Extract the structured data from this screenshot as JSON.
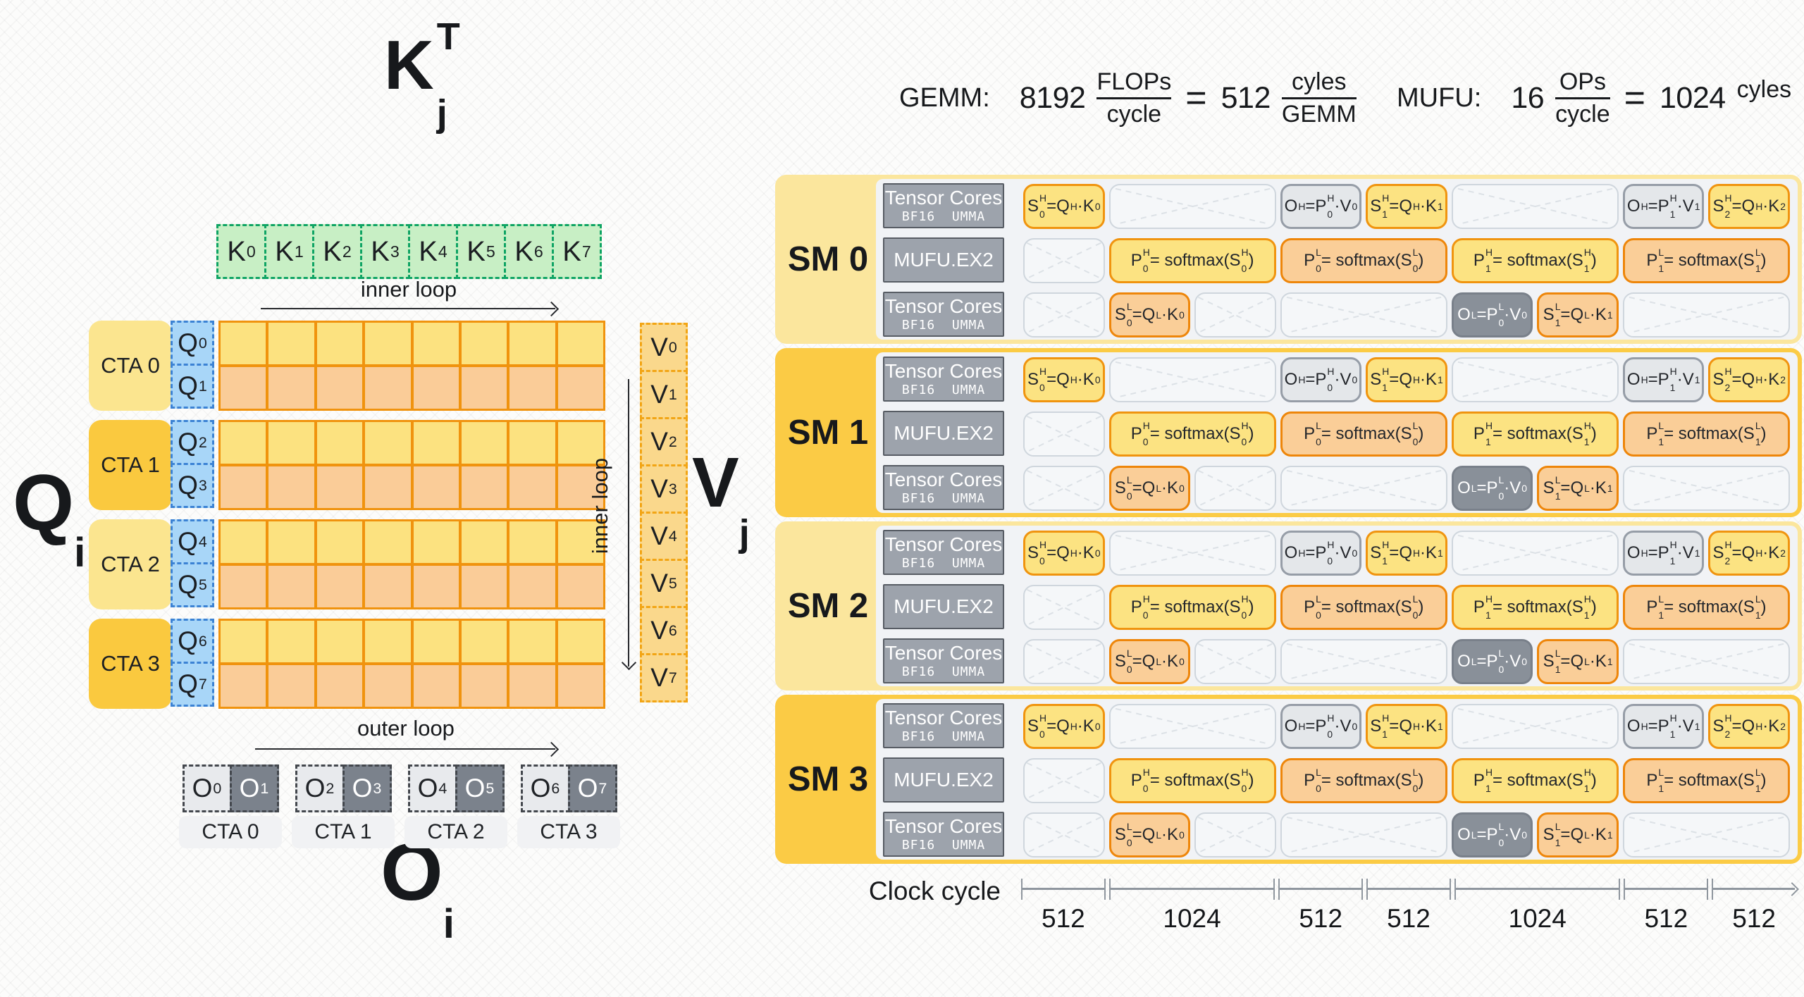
{
  "formulas": {
    "gemm": {
      "label": "GEMM:",
      "coef": "8192",
      "num": "FLOPs",
      "den": "cycle",
      "eq": "=",
      "result": "512",
      "num2": "cyles",
      "den2": "GEMM"
    },
    "mufu": {
      "label": "MUFU:",
      "coef": "16",
      "num": "OPs",
      "den": "cycle",
      "eq": "=",
      "result": "1024",
      "unit": "cyles"
    }
  },
  "left": {
    "k_title": {
      "base": "K",
      "sup": "T",
      "sub": "j"
    },
    "q_title": {
      "base": "Q",
      "sub": "i"
    },
    "v_title": {
      "base": "V",
      "sub": "j"
    },
    "o_title": {
      "base": "O",
      "sub": "i"
    },
    "inner_loop_h": "inner loop",
    "inner_loop_v": "inner loop",
    "outer_loop": "outer loop",
    "k_cells": [
      {
        "base": "K",
        "sub": "0"
      },
      {
        "base": "K",
        "sub": "1"
      },
      {
        "base": "K",
        "sub": "2"
      },
      {
        "base": "K",
        "sub": "3"
      },
      {
        "base": "K",
        "sub": "4"
      },
      {
        "base": "K",
        "sub": "5"
      },
      {
        "base": "K",
        "sub": "6"
      },
      {
        "base": "K",
        "sub": "7"
      }
    ],
    "v_cells": [
      {
        "base": "V",
        "sub": "0"
      },
      {
        "base": "V",
        "sub": "1"
      },
      {
        "base": "V",
        "sub": "2"
      },
      {
        "base": "V",
        "sub": "3"
      },
      {
        "base": "V",
        "sub": "4"
      },
      {
        "base": "V",
        "sub": "5"
      },
      {
        "base": "V",
        "sub": "6"
      },
      {
        "base": "V",
        "sub": "7"
      }
    ],
    "cta_bands": [
      {
        "label": "CTA 0",
        "tone": "light",
        "q_cells": [
          {
            "base": "Q",
            "sub": "0"
          },
          {
            "base": "Q",
            "sub": "1"
          }
        ]
      },
      {
        "label": "CTA 1",
        "tone": "gold",
        "q_cells": [
          {
            "base": "Q",
            "sub": "2"
          },
          {
            "base": "Q",
            "sub": "3"
          }
        ]
      },
      {
        "label": "CTA 2",
        "tone": "light",
        "q_cells": [
          {
            "base": "Q",
            "sub": "4"
          },
          {
            "base": "Q",
            "sub": "5"
          }
        ]
      },
      {
        "label": "CTA 3",
        "tone": "gold",
        "q_cells": [
          {
            "base": "Q",
            "sub": "6"
          },
          {
            "base": "Q",
            "sub": "7"
          }
        ]
      }
    ],
    "matrix": {
      "bands": 4,
      "rows_per_band": 2,
      "cols": 8
    },
    "o_groups": [
      {
        "label": "CTA 0",
        "cells": [
          {
            "base": "O",
            "sub": "0",
            "tone": "light"
          },
          {
            "base": "O",
            "sub": "1",
            "tone": "dark"
          }
        ]
      },
      {
        "label": "CTA 1",
        "cells": [
          {
            "base": "O",
            "sub": "2",
            "tone": "light"
          },
          {
            "base": "O",
            "sub": "3",
            "tone": "dark"
          }
        ]
      },
      {
        "label": "CTA 2",
        "cells": [
          {
            "base": "O",
            "sub": "4",
            "tone": "light"
          },
          {
            "base": "O",
            "sub": "5",
            "tone": "dark"
          }
        ]
      },
      {
        "label": "CTA 3",
        "cells": [
          {
            "base": "O",
            "sub": "6",
            "tone": "light"
          },
          {
            "base": "O",
            "sub": "7",
            "tone": "dark"
          }
        ]
      }
    ]
  },
  "timeline": {
    "clock_label": "Clock cycle",
    "segments": [
      "512",
      "1024",
      "512",
      "512",
      "1024",
      "512",
      "512"
    ],
    "segment_units": [
      1,
      2,
      1,
      1,
      2,
      1,
      1
    ],
    "lane_labels": {
      "tc": {
        "line1": "Tensor Cores",
        "line2": "BF16  UMMA"
      },
      "mufu": {
        "line1": "MUFU.EX2"
      }
    },
    "op_defs": {
      "S0H": {
        "style": "yellow",
        "parts": [
          {
            "t": "S",
            "sub": "0",
            "sup": "H"
          },
          {
            "t": " = "
          },
          {
            "t": "Q",
            "sup": "H"
          },
          {
            "t": "·"
          },
          {
            "t": "K",
            "sub": "0"
          }
        ]
      },
      "S1H": {
        "style": "yellow",
        "parts": [
          {
            "t": "S",
            "sub": "1",
            "sup": "H"
          },
          {
            "t": " = "
          },
          {
            "t": "Q",
            "sup": "H"
          },
          {
            "t": "·"
          },
          {
            "t": "K",
            "sub": "1"
          }
        ]
      },
      "S2H": {
        "style": "yellow",
        "parts": [
          {
            "t": "S",
            "sub": "2",
            "sup": "H"
          },
          {
            "t": " = "
          },
          {
            "t": "Q",
            "sup": "H"
          },
          {
            "t": "·"
          },
          {
            "t": "K",
            "sub": "2"
          }
        ]
      },
      "S0L": {
        "style": "orange",
        "parts": [
          {
            "t": "S",
            "sub": "0",
            "sup": "L"
          },
          {
            "t": " = "
          },
          {
            "t": "Q",
            "sup": "L"
          },
          {
            "t": "·"
          },
          {
            "t": "K",
            "sub": "0"
          }
        ]
      },
      "S1L": {
        "style": "orange",
        "parts": [
          {
            "t": "S",
            "sub": "1",
            "sup": "L"
          },
          {
            "t": " = "
          },
          {
            "t": "Q",
            "sup": "L"
          },
          {
            "t": "·"
          },
          {
            "t": "K",
            "sub": "1"
          }
        ]
      },
      "OH0": {
        "style": "grayH",
        "parts": [
          {
            "t": "O",
            "sup": "H"
          },
          {
            "t": " = "
          },
          {
            "t": "P",
            "sub": "0",
            "sup": "H"
          },
          {
            "t": "·"
          },
          {
            "t": "V",
            "sub": "0"
          }
        ]
      },
      "OH1": {
        "style": "grayH",
        "parts": [
          {
            "t": "O",
            "sup": "H"
          },
          {
            "t": " = "
          },
          {
            "t": "P",
            "sub": "1",
            "sup": "H"
          },
          {
            "t": "·"
          },
          {
            "t": "V",
            "sub": "1"
          }
        ]
      },
      "OL0": {
        "style": "grayL",
        "parts": [
          {
            "t": "O",
            "sup": "L"
          },
          {
            "t": " = "
          },
          {
            "t": "P",
            "sub": "0",
            "sup": "L"
          },
          {
            "t": "·"
          },
          {
            "t": "V",
            "sub": "0"
          }
        ]
      },
      "P0H": {
        "style": "yellow",
        "parts": [
          {
            "t": "P",
            "sub": "0",
            "sup": "H"
          },
          {
            "t": " = softmax("
          },
          {
            "t": "S",
            "sub": "0",
            "sup": "H"
          },
          {
            "t": " )"
          }
        ]
      },
      "P0L": {
        "style": "orange",
        "parts": [
          {
            "t": "P",
            "sub": "0",
            "sup": "L"
          },
          {
            "t": " = softmax("
          },
          {
            "t": "S",
            "sub": "0",
            "sup": "L"
          },
          {
            "t": " )"
          }
        ]
      },
      "P1H": {
        "style": "yellow",
        "parts": [
          {
            "t": "P",
            "sub": "1",
            "sup": "H"
          },
          {
            "t": " = softmax("
          },
          {
            "t": "S",
            "sub": "1",
            "sup": "H"
          },
          {
            "t": " )"
          }
        ]
      },
      "P1L": {
        "style": "orange",
        "parts": [
          {
            "t": "P",
            "sub": "1",
            "sup": "L"
          },
          {
            "t": " = softmax("
          },
          {
            "t": "S",
            "sub": "1",
            "sup": "L"
          },
          {
            "t": " )"
          }
        ]
      }
    },
    "sms": [
      {
        "name": "SM 0",
        "tone": "light",
        "lanes": [
          {
            "label": "tc",
            "slots": [
              {
                "op": "S0H",
                "u": 1
              },
              {
                "idle": true,
                "u": 2
              },
              {
                "op": "OH0",
                "u": 1
              },
              {
                "op": "S1H",
                "u": 1
              },
              {
                "idle": true,
                "u": 2
              },
              {
                "op": "OH1",
                "u": 1
              },
              {
                "op": "S2H",
                "u": 1
              }
            ]
          },
          {
            "label": "mufu",
            "slots": [
              {
                "idle": true,
                "u": 1
              },
              {
                "op": "P0H",
                "u": 2
              },
              {
                "op": "P0L",
                "u": 2
              },
              {
                "op": "P1H",
                "u": 2
              },
              {
                "op": "P1L",
                "u": 2
              }
            ]
          },
          {
            "label": "tc",
            "slots": [
              {
                "idle": true,
                "u": 1
              },
              {
                "op": "S0L",
                "u": 1
              },
              {
                "idle": true,
                "u": 1
              },
              {
                "idle": true,
                "u": 2
              },
              {
                "op": "OL0",
                "u": 1
              },
              {
                "op": "S1L",
                "u": 1
              },
              {
                "idle": true,
                "u": 2
              }
            ]
          }
        ]
      },
      {
        "name": "SM 1",
        "tone": "gold",
        "lanes": [
          {
            "label": "tc",
            "slots": [
              {
                "op": "S0H",
                "u": 1
              },
              {
                "idle": true,
                "u": 2
              },
              {
                "op": "OH0",
                "u": 1
              },
              {
                "op": "S1H",
                "u": 1
              },
              {
                "idle": true,
                "u": 2
              },
              {
                "op": "OH1",
                "u": 1
              },
              {
                "op": "S2H",
                "u": 1
              }
            ]
          },
          {
            "label": "mufu",
            "slots": [
              {
                "idle": true,
                "u": 1
              },
              {
                "op": "P0H",
                "u": 2
              },
              {
                "op": "P0L",
                "u": 2
              },
              {
                "op": "P1H",
                "u": 2
              },
              {
                "op": "P1L",
                "u": 2
              }
            ]
          },
          {
            "label": "tc",
            "slots": [
              {
                "idle": true,
                "u": 1
              },
              {
                "op": "S0L",
                "u": 1
              },
              {
                "idle": true,
                "u": 1
              },
              {
                "idle": true,
                "u": 2
              },
              {
                "op": "OL0",
                "u": 1
              },
              {
                "op": "S1L",
                "u": 1
              },
              {
                "idle": true,
                "u": 2
              }
            ]
          }
        ]
      },
      {
        "name": "SM 2",
        "tone": "light",
        "lanes": [
          {
            "label": "tc",
            "slots": [
              {
                "op": "S0H",
                "u": 1
              },
              {
                "idle": true,
                "u": 2
              },
              {
                "op": "OH0",
                "u": 1
              },
              {
                "op": "S1H",
                "u": 1
              },
              {
                "idle": true,
                "u": 2
              },
              {
                "op": "OH1",
                "u": 1
              },
              {
                "op": "S2H",
                "u": 1
              }
            ]
          },
          {
            "label": "mufu",
            "slots": [
              {
                "idle": true,
                "u": 1
              },
              {
                "op": "P0H",
                "u": 2
              },
              {
                "op": "P0L",
                "u": 2
              },
              {
                "op": "P1H",
                "u": 2
              },
              {
                "op": "P1L",
                "u": 2
              }
            ]
          },
          {
            "label": "tc",
            "slots": [
              {
                "idle": true,
                "u": 1
              },
              {
                "op": "S0L",
                "u": 1
              },
              {
                "idle": true,
                "u": 1
              },
              {
                "idle": true,
                "u": 2
              },
              {
                "op": "OL0",
                "u": 1
              },
              {
                "op": "S1L",
                "u": 1
              },
              {
                "idle": true,
                "u": 2
              }
            ]
          }
        ]
      },
      {
        "name": "SM 3",
        "tone": "gold",
        "lanes": [
          {
            "label": "tc",
            "slots": [
              {
                "op": "S0H",
                "u": 1
              },
              {
                "idle": true,
                "u": 2
              },
              {
                "op": "OH0",
                "u": 1
              },
              {
                "op": "S1H",
                "u": 1
              },
              {
                "idle": true,
                "u": 2
              },
              {
                "op": "OH1",
                "u": 1
              },
              {
                "op": "S2H",
                "u": 1
              }
            ]
          },
          {
            "label": "mufu",
            "slots": [
              {
                "idle": true,
                "u": 1
              },
              {
                "op": "P0H",
                "u": 2
              },
              {
                "op": "P0L",
                "u": 2
              },
              {
                "op": "P1H",
                "u": 2
              },
              {
                "op": "P1L",
                "u": 2
              }
            ]
          },
          {
            "label": "tc",
            "slots": [
              {
                "idle": true,
                "u": 1
              },
              {
                "op": "S0L",
                "u": 1
              },
              {
                "idle": true,
                "u": 1
              },
              {
                "idle": true,
                "u": 2
              },
              {
                "op": "OL0",
                "u": 1
              },
              {
                "op": "S1L",
                "u": 1
              },
              {
                "idle": true,
                "u": 2
              }
            ]
          }
        ]
      }
    ]
  }
}
